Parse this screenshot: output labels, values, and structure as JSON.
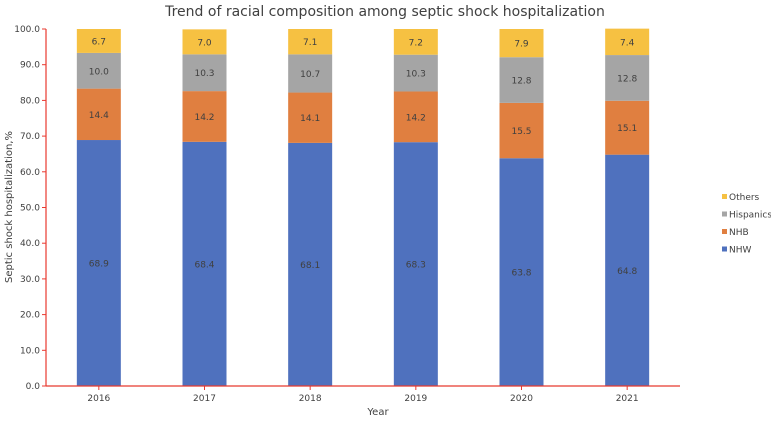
{
  "chart_data": {
    "type": "bar",
    "stacked": true,
    "title": "Trend of racial composition among septic shock hospitalization",
    "xlabel": "Year",
    "ylabel": "Septic shock hospitalization,%",
    "ylim": [
      0,
      100
    ],
    "yticks": [
      "0.0",
      "10.0",
      "20.0",
      "30.0",
      "40.0",
      "50.0",
      "60.0",
      "70.0",
      "80.0",
      "90.0",
      "100.0"
    ],
    "categories": [
      "2016",
      "2017",
      "2018",
      "2019",
      "2020",
      "2021"
    ],
    "grid": false,
    "legend_position": "right",
    "series": [
      {
        "name": "NHW",
        "color": "#4f71be",
        "values": [
          68.9,
          68.4,
          68.1,
          68.3,
          63.8,
          64.8
        ]
      },
      {
        "name": "NHB",
        "color": "#e07f40",
        "values": [
          14.4,
          14.2,
          14.1,
          14.2,
          15.5,
          15.1
        ]
      },
      {
        "name": "Hispanics",
        "color": "#a5a5a5",
        "values": [
          10.0,
          10.3,
          10.7,
          10.3,
          12.8,
          12.8
        ]
      },
      {
        "name": "Others",
        "color": "#f6c142",
        "values": [
          6.7,
          7.0,
          7.1,
          7.2,
          7.9,
          7.4
        ]
      }
    ],
    "axis_color": "#e8392f"
  }
}
